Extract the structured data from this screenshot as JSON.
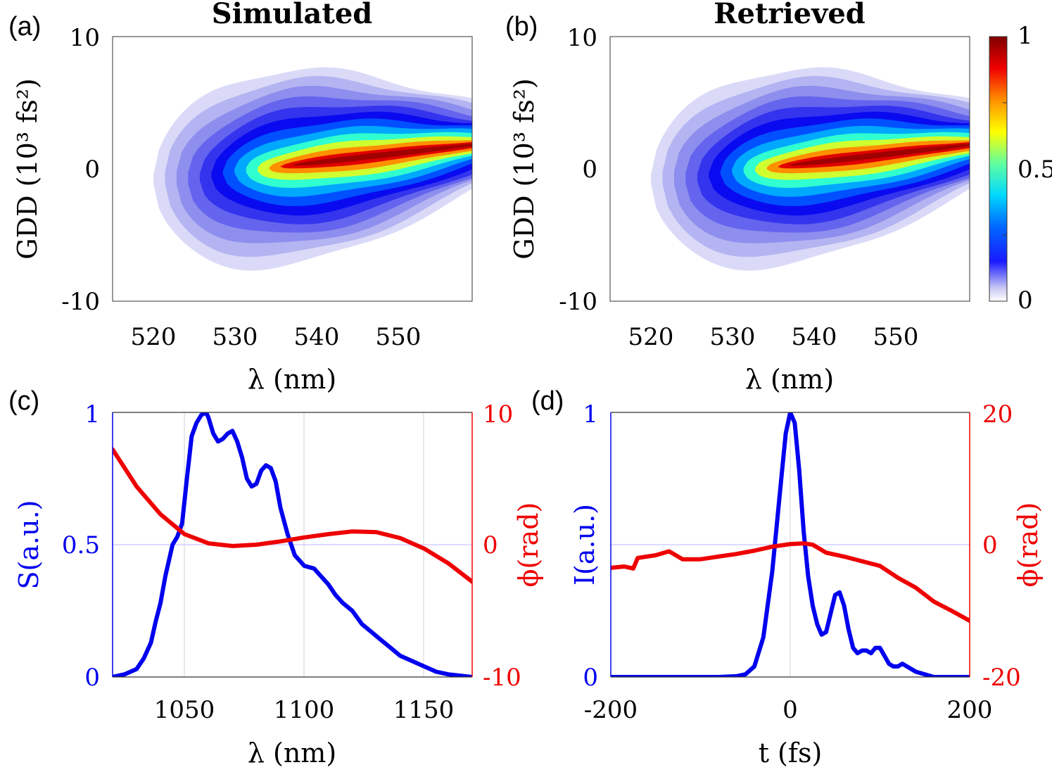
{
  "chart_data": [
    {
      "panel": "(a)",
      "type": "heatmap",
      "title": "Simulated",
      "xlabel": "λ (nm)",
      "ylabel": "GDD (10³ fs²)",
      "xlim": [
        515,
        559
      ],
      "ylim": [
        -10,
        10
      ],
      "xticks": [
        "520",
        "530",
        "540",
        "550"
      ],
      "yticks": [
        "-10",
        "0",
        "10"
      ],
      "peak": {
        "wavelength_nm": 539,
        "gdd_1e3fs2": 0.3,
        "value": 1
      },
      "ridge": {
        "x": [
          525,
          530,
          535,
          540,
          545,
          550,
          559
        ],
        "y": [
          -0.7,
          -0.4,
          0.0,
          0.4,
          0.8,
          1.2,
          2.0
        ]
      }
    },
    {
      "panel": "(b)",
      "type": "heatmap",
      "title": "Retrieved",
      "xlabel": "λ (nm)",
      "ylabel": "GDD (10³ fs²)",
      "xlim": [
        515,
        559
      ],
      "ylim": [
        -10,
        10
      ],
      "xticks": [
        "520",
        "530",
        "540",
        "550"
      ],
      "yticks": [
        "-10",
        "0",
        "10"
      ],
      "colorbar": {
        "range": [
          0,
          1
        ],
        "ticks": [
          "0",
          "0.5",
          "1"
        ]
      },
      "peak": {
        "wavelength_nm": 539,
        "gdd_1e3fs2": 0.3,
        "value": 1
      },
      "ridge": {
        "x": [
          525,
          530,
          535,
          540,
          545,
          550,
          559
        ],
        "y": [
          -0.7,
          -0.4,
          0.0,
          0.4,
          0.8,
          1.2,
          2.0
        ]
      }
    },
    {
      "panel": "(c)",
      "type": "line",
      "xlabel": "λ (nm)",
      "ylabel_left": "S(a.u.)",
      "ylabel_right": "ϕ(rad)",
      "xlim": [
        1020,
        1170
      ],
      "ylim_left": [
        0,
        1
      ],
      "ylim_right": [
        -10,
        10
      ],
      "xticks": [
        "1050",
        "1100",
        "1150"
      ],
      "yticks_left": [
        "0",
        "0.5",
        "1"
      ],
      "yticks_right": [
        "-10",
        "0",
        "10"
      ],
      "series": [
        {
          "name": "S",
          "axis": "left",
          "color": "#0000ee",
          "x": [
            1020,
            1025,
            1030,
            1033,
            1036,
            1038,
            1040,
            1042,
            1045,
            1047,
            1049,
            1051,
            1053,
            1055,
            1057,
            1059,
            1060,
            1062,
            1064,
            1066,
            1068,
            1070,
            1072,
            1074,
            1076,
            1078,
            1080,
            1082,
            1084,
            1086,
            1088,
            1090,
            1093,
            1096,
            1100,
            1104,
            1107,
            1110,
            1113,
            1116,
            1120,
            1124,
            1128,
            1132,
            1136,
            1140,
            1145,
            1150,
            1155,
            1160,
            1165,
            1170
          ],
          "values": [
            0.0,
            0.01,
            0.03,
            0.07,
            0.13,
            0.21,
            0.28,
            0.38,
            0.5,
            0.53,
            0.58,
            0.75,
            0.91,
            0.96,
            0.99,
            1.0,
            0.98,
            0.92,
            0.89,
            0.9,
            0.92,
            0.93,
            0.89,
            0.83,
            0.75,
            0.72,
            0.73,
            0.78,
            0.8,
            0.79,
            0.74,
            0.64,
            0.54,
            0.46,
            0.42,
            0.41,
            0.38,
            0.35,
            0.31,
            0.28,
            0.25,
            0.2,
            0.17,
            0.14,
            0.11,
            0.08,
            0.06,
            0.04,
            0.02,
            0.01,
            0.005,
            0.0
          ]
        },
        {
          "name": "ϕ",
          "axis": "right",
          "color": "#ee0000",
          "x": [
            1020,
            1030,
            1040,
            1050,
            1060,
            1070,
            1080,
            1090,
            1100,
            1110,
            1120,
            1130,
            1140,
            1150,
            1160,
            1170
          ],
          "values": [
            7.2,
            4.4,
            2.3,
            0.8,
            0.1,
            -0.1,
            0.0,
            0.25,
            0.55,
            0.8,
            1.0,
            0.95,
            0.5,
            -0.3,
            -1.4,
            -2.8
          ]
        }
      ]
    },
    {
      "panel": "(d)",
      "type": "line",
      "xlabel": "t (fs)",
      "ylabel_left": "I(a.u.)",
      "ylabel_right": "ϕ(rad)",
      "xlim": [
        -200,
        200
      ],
      "ylim_left": [
        0,
        1
      ],
      "ylim_right": [
        -20,
        20
      ],
      "xticks": [
        "-200",
        "0",
        "200"
      ],
      "yticks_left": [
        "0",
        "1"
      ],
      "yticks_right": [
        "-20",
        "0",
        "20"
      ],
      "series": [
        {
          "name": "I",
          "axis": "left",
          "color": "#0000ee",
          "x": [
            -200,
            -80,
            -60,
            -50,
            -40,
            -30,
            -20,
            -10,
            -5,
            0,
            5,
            10,
            15,
            20,
            25,
            30,
            35,
            40,
            45,
            50,
            55,
            60,
            65,
            70,
            75,
            80,
            85,
            90,
            95,
            100,
            105,
            110,
            115,
            120,
            125,
            130,
            140,
            150,
            160,
            175,
            190,
            200
          ],
          "values": [
            0.0,
            0.0,
            0.003,
            0.01,
            0.04,
            0.15,
            0.4,
            0.75,
            0.92,
            1.0,
            0.96,
            0.78,
            0.55,
            0.38,
            0.27,
            0.2,
            0.16,
            0.17,
            0.24,
            0.31,
            0.32,
            0.27,
            0.18,
            0.11,
            0.09,
            0.1,
            0.1,
            0.09,
            0.11,
            0.11,
            0.08,
            0.05,
            0.04,
            0.04,
            0.05,
            0.04,
            0.02,
            0.01,
            0.0,
            0.0,
            0.0,
            0.0
          ]
        },
        {
          "name": "ϕ",
          "axis": "right",
          "color": "#ee0000",
          "x": [
            -200,
            -185,
            -175,
            -170,
            -150,
            -135,
            -120,
            -100,
            -80,
            -60,
            -40,
            -20,
            0,
            15,
            25,
            40,
            60,
            80,
            100,
            120,
            140,
            160,
            180,
            200
          ],
          "values": [
            -3.5,
            -3.3,
            -3.6,
            -2.0,
            -1.6,
            -1.0,
            -2.2,
            -2.2,
            -1.8,
            -1.4,
            -0.9,
            -0.3,
            0.1,
            0.2,
            0.0,
            -1.2,
            -1.8,
            -2.5,
            -3.2,
            -5.0,
            -6.5,
            -8.6,
            -10.0,
            -11.5
          ]
        }
      ]
    }
  ]
}
